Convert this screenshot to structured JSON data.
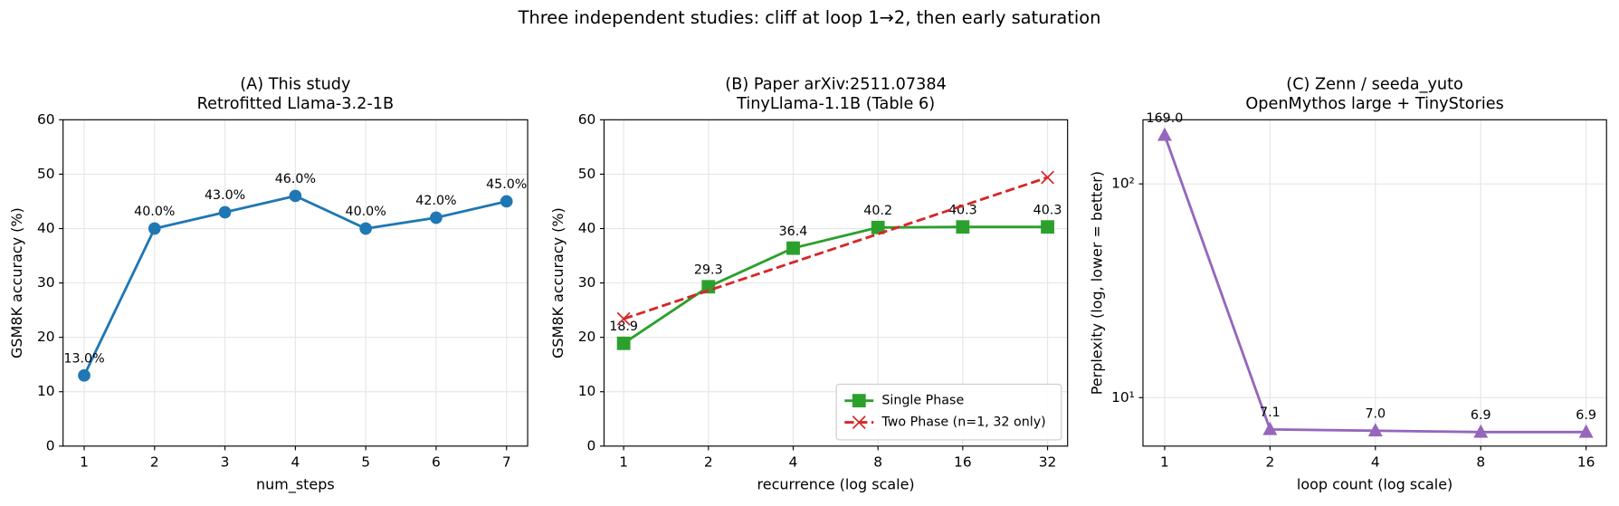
{
  "suptitle": "Three independent studies: cliff at loop 1→2, then early saturation",
  "chart_data": [
    {
      "type": "line",
      "title": "(A) This study",
      "subtitle": "Retrofitted Llama-3.2-1B",
      "xlabel": "num_steps",
      "ylabel": "GSM8K accuracy (%)",
      "x": [
        1,
        2,
        3,
        4,
        5,
        6,
        7
      ],
      "series": [
        {
          "color": "#1f77b4",
          "marker": "o",
          "values": [
            13,
            40,
            43,
            46,
            40,
            42,
            45
          ],
          "value_labels": [
            "13.0%",
            "40.0%",
            "43.0%",
            "46.0%",
            "40.0%",
            "42.0%",
            "45.0%"
          ]
        }
      ],
      "xlim": [
        0.7,
        7.3
      ],
      "xticks": [
        1,
        2,
        3,
        4,
        5,
        6,
        7
      ],
      "ylim": [
        0,
        60
      ],
      "yticks": [
        0,
        10,
        20,
        30,
        40,
        50,
        60
      ],
      "grid": true
    },
    {
      "type": "line",
      "title": "(B) Paper arXiv:2511.07384",
      "subtitle": "TinyLlama-1.1B (Table 6)",
      "xlabel": "recurrence (log scale)",
      "ylabel": "GSM8K accuracy (%)",
      "xscale": "log",
      "x": [
        1,
        2,
        4,
        8,
        16,
        32
      ],
      "series": [
        {
          "name": "Single Phase",
          "color": "#2ca02c",
          "marker": "s",
          "linestyle": "solid",
          "labels": true,
          "values": [
            18.9,
            29.3,
            36.4,
            40.2,
            40.3,
            40.3
          ]
        },
        {
          "name": "Two Phase (n=1, 32 only)",
          "color": "#d62728",
          "marker": "x",
          "linestyle": "dashed",
          "x": [
            1,
            32
          ],
          "values": [
            23.4,
            49.4
          ]
        }
      ],
      "xlim": [
        0.852,
        37.7
      ],
      "xticks": [
        1,
        2,
        4,
        8,
        16,
        32
      ],
      "ylim": [
        0,
        60
      ],
      "yticks": [
        0,
        10,
        20,
        30,
        40,
        50,
        60
      ],
      "grid": true,
      "legend": "lower right"
    },
    {
      "type": "line",
      "title": "(C) Zenn / seeda_yuto",
      "subtitle": "OpenMythos large + TinyStories",
      "xlabel": "loop count (log scale)",
      "ylabel": "Perplexity (log, lower = better)",
      "xscale": "log",
      "yscale": "log",
      "x": [
        1,
        2,
        4,
        8,
        16
      ],
      "series": [
        {
          "color": "#9467bd",
          "marker": "^",
          "values": [
            169.0,
            7.1,
            7.0,
            6.9,
            6.9
          ],
          "value_labels": [
            "169.0",
            "7.1",
            "7.0",
            "6.9",
            "6.9"
          ]
        }
      ],
      "xlim": [
        0.867,
        18.3
      ],
      "xticks": [
        1,
        2,
        4,
        8,
        16
      ],
      "ylim": [
        5.93,
        199.5
      ],
      "yticks": [
        {
          "value": 10,
          "label": "10¹"
        },
        {
          "value": 100,
          "label": "10²"
        }
      ],
      "grid": true
    }
  ]
}
